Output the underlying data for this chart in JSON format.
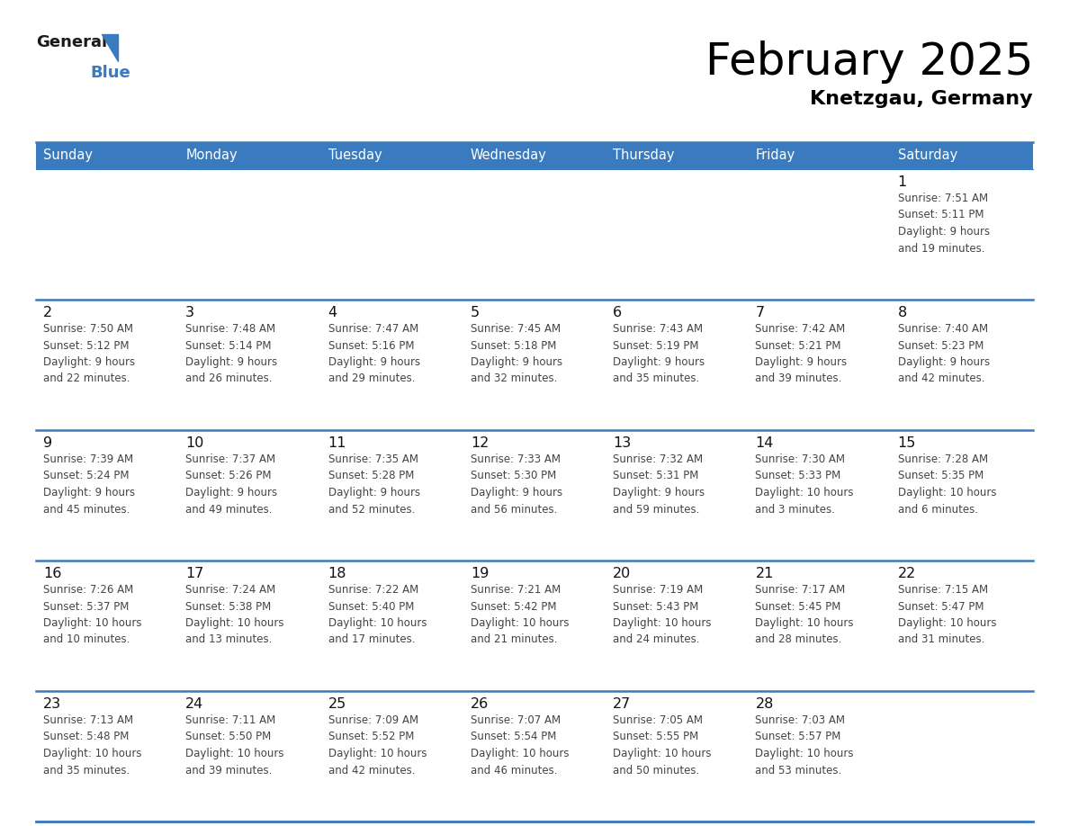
{
  "title": "February 2025",
  "subtitle": "Knetzgau, Germany",
  "header_color": "#3a7bbf",
  "header_text_color": "#ffffff",
  "day_names": [
    "Sunday",
    "Monday",
    "Tuesday",
    "Wednesday",
    "Thursday",
    "Friday",
    "Saturday"
  ],
  "border_color": "#3a7bbf",
  "title_color": "#000000",
  "subtitle_color": "#000000",
  "info_text_color": "#444444",
  "day_number_color": "#111111",
  "calendar_data": [
    [
      {
        "day": null,
        "info": ""
      },
      {
        "day": null,
        "info": ""
      },
      {
        "day": null,
        "info": ""
      },
      {
        "day": null,
        "info": ""
      },
      {
        "day": null,
        "info": ""
      },
      {
        "day": null,
        "info": ""
      },
      {
        "day": 1,
        "info": "Sunrise: 7:51 AM\nSunset: 5:11 PM\nDaylight: 9 hours\nand 19 minutes."
      }
    ],
    [
      {
        "day": 2,
        "info": "Sunrise: 7:50 AM\nSunset: 5:12 PM\nDaylight: 9 hours\nand 22 minutes."
      },
      {
        "day": 3,
        "info": "Sunrise: 7:48 AM\nSunset: 5:14 PM\nDaylight: 9 hours\nand 26 minutes."
      },
      {
        "day": 4,
        "info": "Sunrise: 7:47 AM\nSunset: 5:16 PM\nDaylight: 9 hours\nand 29 minutes."
      },
      {
        "day": 5,
        "info": "Sunrise: 7:45 AM\nSunset: 5:18 PM\nDaylight: 9 hours\nand 32 minutes."
      },
      {
        "day": 6,
        "info": "Sunrise: 7:43 AM\nSunset: 5:19 PM\nDaylight: 9 hours\nand 35 minutes."
      },
      {
        "day": 7,
        "info": "Sunrise: 7:42 AM\nSunset: 5:21 PM\nDaylight: 9 hours\nand 39 minutes."
      },
      {
        "day": 8,
        "info": "Sunrise: 7:40 AM\nSunset: 5:23 PM\nDaylight: 9 hours\nand 42 minutes."
      }
    ],
    [
      {
        "day": 9,
        "info": "Sunrise: 7:39 AM\nSunset: 5:24 PM\nDaylight: 9 hours\nand 45 minutes."
      },
      {
        "day": 10,
        "info": "Sunrise: 7:37 AM\nSunset: 5:26 PM\nDaylight: 9 hours\nand 49 minutes."
      },
      {
        "day": 11,
        "info": "Sunrise: 7:35 AM\nSunset: 5:28 PM\nDaylight: 9 hours\nand 52 minutes."
      },
      {
        "day": 12,
        "info": "Sunrise: 7:33 AM\nSunset: 5:30 PM\nDaylight: 9 hours\nand 56 minutes."
      },
      {
        "day": 13,
        "info": "Sunrise: 7:32 AM\nSunset: 5:31 PM\nDaylight: 9 hours\nand 59 minutes."
      },
      {
        "day": 14,
        "info": "Sunrise: 7:30 AM\nSunset: 5:33 PM\nDaylight: 10 hours\nand 3 minutes."
      },
      {
        "day": 15,
        "info": "Sunrise: 7:28 AM\nSunset: 5:35 PM\nDaylight: 10 hours\nand 6 minutes."
      }
    ],
    [
      {
        "day": 16,
        "info": "Sunrise: 7:26 AM\nSunset: 5:37 PM\nDaylight: 10 hours\nand 10 minutes."
      },
      {
        "day": 17,
        "info": "Sunrise: 7:24 AM\nSunset: 5:38 PM\nDaylight: 10 hours\nand 13 minutes."
      },
      {
        "day": 18,
        "info": "Sunrise: 7:22 AM\nSunset: 5:40 PM\nDaylight: 10 hours\nand 17 minutes."
      },
      {
        "day": 19,
        "info": "Sunrise: 7:21 AM\nSunset: 5:42 PM\nDaylight: 10 hours\nand 21 minutes."
      },
      {
        "day": 20,
        "info": "Sunrise: 7:19 AM\nSunset: 5:43 PM\nDaylight: 10 hours\nand 24 minutes."
      },
      {
        "day": 21,
        "info": "Sunrise: 7:17 AM\nSunset: 5:45 PM\nDaylight: 10 hours\nand 28 minutes."
      },
      {
        "day": 22,
        "info": "Sunrise: 7:15 AM\nSunset: 5:47 PM\nDaylight: 10 hours\nand 31 minutes."
      }
    ],
    [
      {
        "day": 23,
        "info": "Sunrise: 7:13 AM\nSunset: 5:48 PM\nDaylight: 10 hours\nand 35 minutes."
      },
      {
        "day": 24,
        "info": "Sunrise: 7:11 AM\nSunset: 5:50 PM\nDaylight: 10 hours\nand 39 minutes."
      },
      {
        "day": 25,
        "info": "Sunrise: 7:09 AM\nSunset: 5:52 PM\nDaylight: 10 hours\nand 42 minutes."
      },
      {
        "day": 26,
        "info": "Sunrise: 7:07 AM\nSunset: 5:54 PM\nDaylight: 10 hours\nand 46 minutes."
      },
      {
        "day": 27,
        "info": "Sunrise: 7:05 AM\nSunset: 5:55 PM\nDaylight: 10 hours\nand 50 minutes."
      },
      {
        "day": 28,
        "info": "Sunrise: 7:03 AM\nSunset: 5:57 PM\nDaylight: 10 hours\nand 53 minutes."
      },
      {
        "day": null,
        "info": ""
      }
    ]
  ],
  "fig_width": 11.88,
  "fig_height": 9.18,
  "dpi": 100
}
